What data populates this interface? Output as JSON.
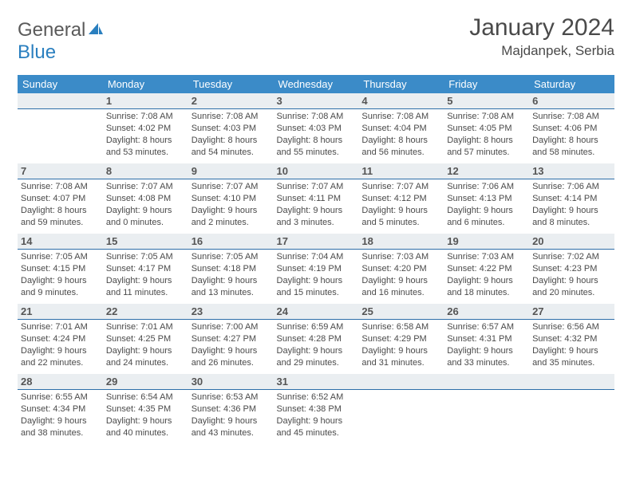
{
  "logo": {
    "word1": "General",
    "word2": "Blue"
  },
  "title": "January 2024",
  "location": "Majdanpek, Serbia",
  "weekdays": [
    "Sunday",
    "Monday",
    "Tuesday",
    "Wednesday",
    "Thursday",
    "Friday",
    "Saturday"
  ],
  "colors": {
    "header_bg": "#3b8bc8",
    "header_text": "#ffffff",
    "daynum_bg": "#eaeef1",
    "daynum_border": "#2d6ea8",
    "body_text": "#4a4a4a",
    "logo_gray": "#5a5a5a",
    "logo_blue": "#2a7fbf"
  },
  "cells": [
    [
      {
        "n": "",
        "lines": []
      },
      {
        "n": "1",
        "lines": [
          "Sunrise: 7:08 AM",
          "Sunset: 4:02 PM",
          "Daylight: 8 hours",
          "and 53 minutes."
        ]
      },
      {
        "n": "2",
        "lines": [
          "Sunrise: 7:08 AM",
          "Sunset: 4:03 PM",
          "Daylight: 8 hours",
          "and 54 minutes."
        ]
      },
      {
        "n": "3",
        "lines": [
          "Sunrise: 7:08 AM",
          "Sunset: 4:03 PM",
          "Daylight: 8 hours",
          "and 55 minutes."
        ]
      },
      {
        "n": "4",
        "lines": [
          "Sunrise: 7:08 AM",
          "Sunset: 4:04 PM",
          "Daylight: 8 hours",
          "and 56 minutes."
        ]
      },
      {
        "n": "5",
        "lines": [
          "Sunrise: 7:08 AM",
          "Sunset: 4:05 PM",
          "Daylight: 8 hours",
          "and 57 minutes."
        ]
      },
      {
        "n": "6",
        "lines": [
          "Sunrise: 7:08 AM",
          "Sunset: 4:06 PM",
          "Daylight: 8 hours",
          "and 58 minutes."
        ]
      }
    ],
    [
      {
        "n": "7",
        "lines": [
          "Sunrise: 7:08 AM",
          "Sunset: 4:07 PM",
          "Daylight: 8 hours",
          "and 59 minutes."
        ]
      },
      {
        "n": "8",
        "lines": [
          "Sunrise: 7:07 AM",
          "Sunset: 4:08 PM",
          "Daylight: 9 hours",
          "and 0 minutes."
        ]
      },
      {
        "n": "9",
        "lines": [
          "Sunrise: 7:07 AM",
          "Sunset: 4:10 PM",
          "Daylight: 9 hours",
          "and 2 minutes."
        ]
      },
      {
        "n": "10",
        "lines": [
          "Sunrise: 7:07 AM",
          "Sunset: 4:11 PM",
          "Daylight: 9 hours",
          "and 3 minutes."
        ]
      },
      {
        "n": "11",
        "lines": [
          "Sunrise: 7:07 AM",
          "Sunset: 4:12 PM",
          "Daylight: 9 hours",
          "and 5 minutes."
        ]
      },
      {
        "n": "12",
        "lines": [
          "Sunrise: 7:06 AM",
          "Sunset: 4:13 PM",
          "Daylight: 9 hours",
          "and 6 minutes."
        ]
      },
      {
        "n": "13",
        "lines": [
          "Sunrise: 7:06 AM",
          "Sunset: 4:14 PM",
          "Daylight: 9 hours",
          "and 8 minutes."
        ]
      }
    ],
    [
      {
        "n": "14",
        "lines": [
          "Sunrise: 7:05 AM",
          "Sunset: 4:15 PM",
          "Daylight: 9 hours",
          "and 9 minutes."
        ]
      },
      {
        "n": "15",
        "lines": [
          "Sunrise: 7:05 AM",
          "Sunset: 4:17 PM",
          "Daylight: 9 hours",
          "and 11 minutes."
        ]
      },
      {
        "n": "16",
        "lines": [
          "Sunrise: 7:05 AM",
          "Sunset: 4:18 PM",
          "Daylight: 9 hours",
          "and 13 minutes."
        ]
      },
      {
        "n": "17",
        "lines": [
          "Sunrise: 7:04 AM",
          "Sunset: 4:19 PM",
          "Daylight: 9 hours",
          "and 15 minutes."
        ]
      },
      {
        "n": "18",
        "lines": [
          "Sunrise: 7:03 AM",
          "Sunset: 4:20 PM",
          "Daylight: 9 hours",
          "and 16 minutes."
        ]
      },
      {
        "n": "19",
        "lines": [
          "Sunrise: 7:03 AM",
          "Sunset: 4:22 PM",
          "Daylight: 9 hours",
          "and 18 minutes."
        ]
      },
      {
        "n": "20",
        "lines": [
          "Sunrise: 7:02 AM",
          "Sunset: 4:23 PM",
          "Daylight: 9 hours",
          "and 20 minutes."
        ]
      }
    ],
    [
      {
        "n": "21",
        "lines": [
          "Sunrise: 7:01 AM",
          "Sunset: 4:24 PM",
          "Daylight: 9 hours",
          "and 22 minutes."
        ]
      },
      {
        "n": "22",
        "lines": [
          "Sunrise: 7:01 AM",
          "Sunset: 4:25 PM",
          "Daylight: 9 hours",
          "and 24 minutes."
        ]
      },
      {
        "n": "23",
        "lines": [
          "Sunrise: 7:00 AM",
          "Sunset: 4:27 PM",
          "Daylight: 9 hours",
          "and 26 minutes."
        ]
      },
      {
        "n": "24",
        "lines": [
          "Sunrise: 6:59 AM",
          "Sunset: 4:28 PM",
          "Daylight: 9 hours",
          "and 29 minutes."
        ]
      },
      {
        "n": "25",
        "lines": [
          "Sunrise: 6:58 AM",
          "Sunset: 4:29 PM",
          "Daylight: 9 hours",
          "and 31 minutes."
        ]
      },
      {
        "n": "26",
        "lines": [
          "Sunrise: 6:57 AM",
          "Sunset: 4:31 PM",
          "Daylight: 9 hours",
          "and 33 minutes."
        ]
      },
      {
        "n": "27",
        "lines": [
          "Sunrise: 6:56 AM",
          "Sunset: 4:32 PM",
          "Daylight: 9 hours",
          "and 35 minutes."
        ]
      }
    ],
    [
      {
        "n": "28",
        "lines": [
          "Sunrise: 6:55 AM",
          "Sunset: 4:34 PM",
          "Daylight: 9 hours",
          "and 38 minutes."
        ]
      },
      {
        "n": "29",
        "lines": [
          "Sunrise: 6:54 AM",
          "Sunset: 4:35 PM",
          "Daylight: 9 hours",
          "and 40 minutes."
        ]
      },
      {
        "n": "30",
        "lines": [
          "Sunrise: 6:53 AM",
          "Sunset: 4:36 PM",
          "Daylight: 9 hours",
          "and 43 minutes."
        ]
      },
      {
        "n": "31",
        "lines": [
          "Sunrise: 6:52 AM",
          "Sunset: 4:38 PM",
          "Daylight: 9 hours",
          "and 45 minutes."
        ]
      },
      {
        "n": "",
        "lines": []
      },
      {
        "n": "",
        "lines": []
      },
      {
        "n": "",
        "lines": []
      }
    ]
  ]
}
